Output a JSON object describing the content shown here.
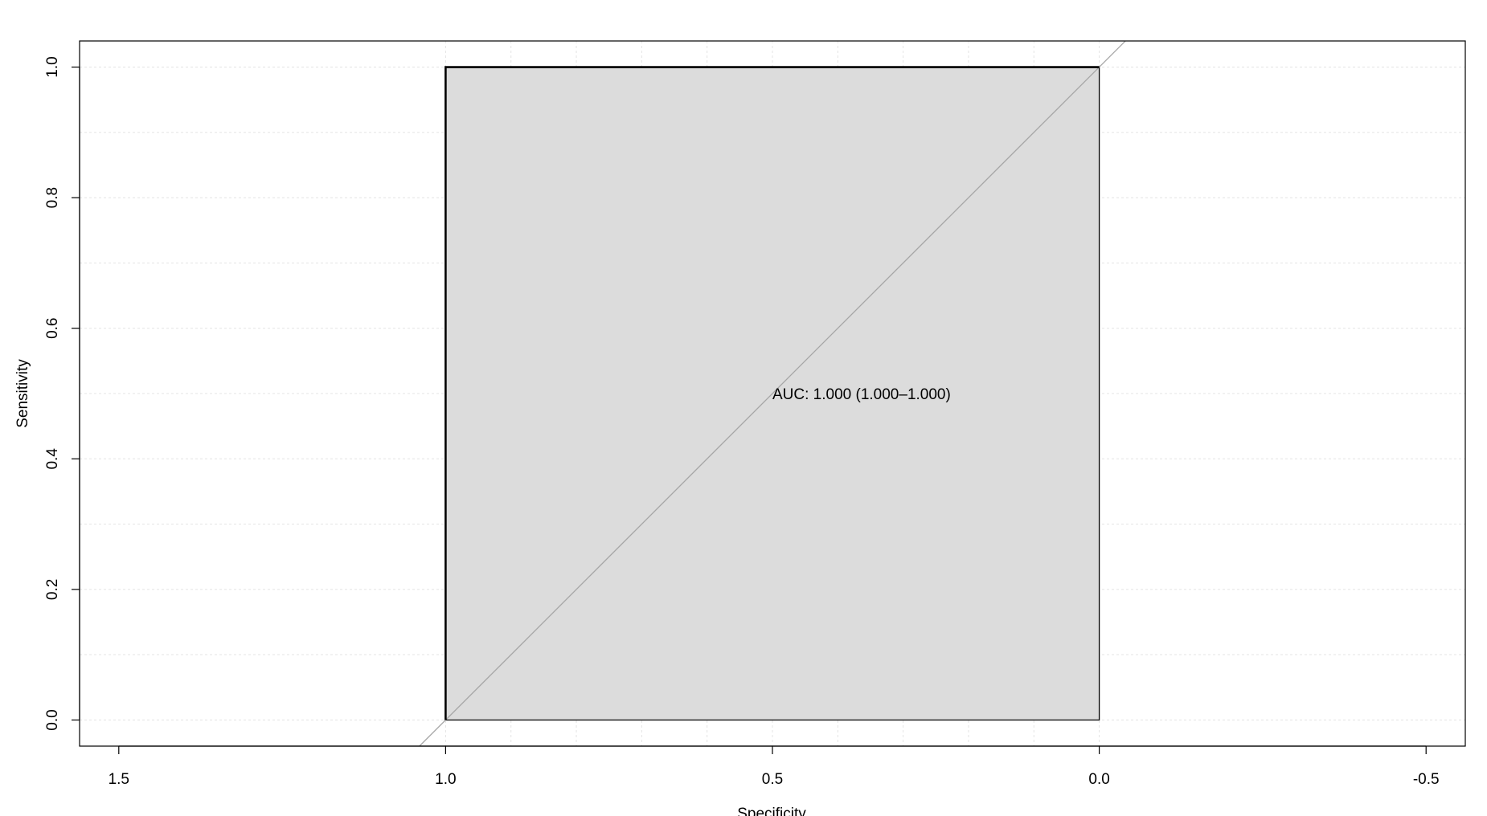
{
  "chart_data": {
    "type": "line",
    "title": "",
    "xlabel": "Specificity",
    "ylabel": "Sensitivity",
    "x_reversed": true,
    "xlim": [
      1.56,
      -0.56
    ],
    "ylim": [
      -0.04,
      1.04
    ],
    "x_ticks": [
      1.5,
      1.0,
      0.5,
      0.0,
      -0.5
    ],
    "x_tick_labels": [
      "1.5",
      "1.0",
      "0.5",
      "0.0",
      "-0.5"
    ],
    "x_minor_grid": [
      1.0,
      0.9,
      0.8,
      0.7,
      0.6,
      0.5,
      0.4,
      0.3,
      0.2,
      0.1,
      0.0
    ],
    "y_ticks": [
      0.0,
      0.2,
      0.4,
      0.6,
      0.8,
      1.0
    ],
    "y_tick_labels": [
      "0.0",
      "0.2",
      "0.4",
      "0.6",
      "0.8",
      "1.0"
    ],
    "y_minor_grid": [
      0.0,
      0.1,
      0.2,
      0.3,
      0.4,
      0.5,
      0.6,
      0.7,
      0.8,
      0.9,
      1.0
    ],
    "grid": true,
    "series": [
      {
        "specificity": [
          1.0,
          1.0,
          0.0
        ],
        "sensitivity": [
          0.0,
          1.0,
          1.0
        ],
        "color": "#000000"
      }
    ],
    "auc_polygon": {
      "specificity": [
        1.0,
        1.0,
        0.0,
        0.0
      ],
      "sensitivity": [
        0.0,
        1.0,
        1.0,
        0.0
      ],
      "fill": "#dcdcdc",
      "stroke": "#000000"
    },
    "reference_line": {
      "slope": 1,
      "color": "#a6a6a6"
    },
    "annotation": {
      "text": "AUC: 1.000 (1.000–1.000)",
      "specificity": 0.5,
      "sensitivity": 0.5
    },
    "grid_color": "#e4e4e4"
  }
}
